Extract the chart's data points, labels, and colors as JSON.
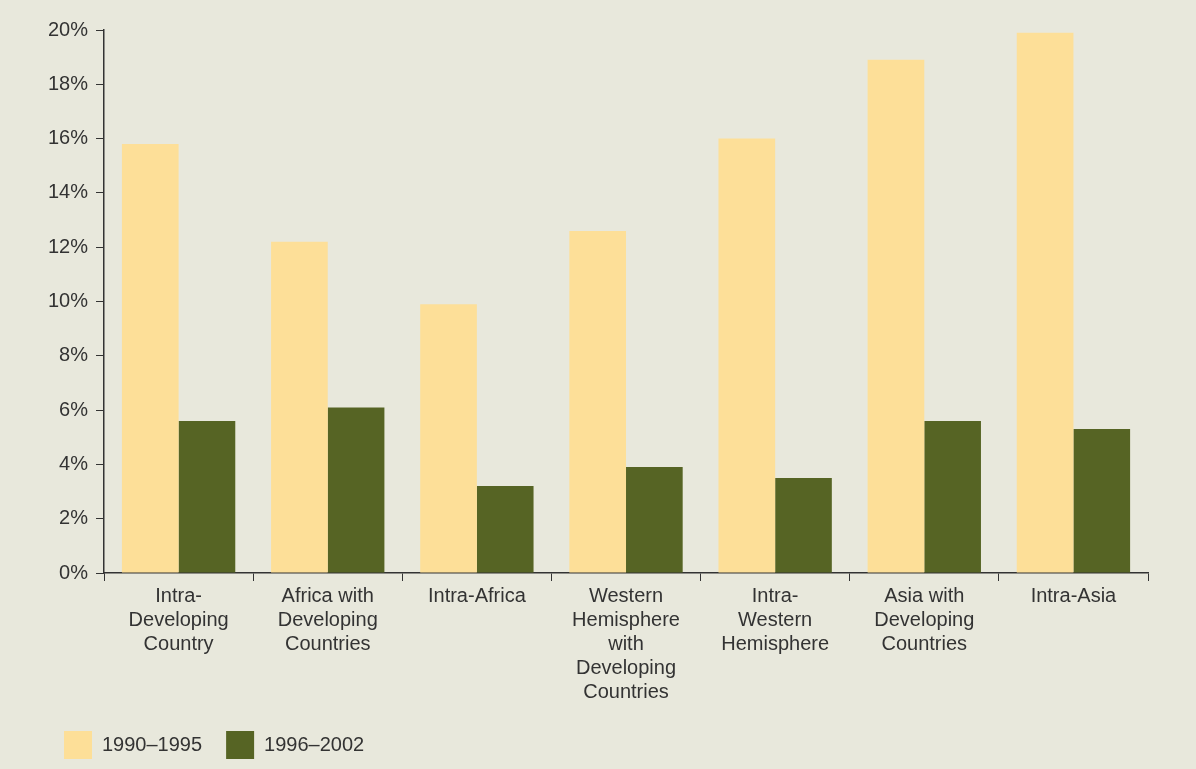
{
  "chart_data": {
    "type": "bar",
    "categories": [
      "Intra-Developing Country",
      "Africa with Developing Countries",
      "Intra-Africa",
      "Western Hemisphere with Developing Countries",
      "Intra-Western Hemisphere",
      "Asia with Developing Countries",
      "Intra-Asia"
    ],
    "series": [
      {
        "name": "1990–1995",
        "color": "#fddf98",
        "values": [
          15.8,
          12.2,
          9.9,
          12.6,
          16.0,
          18.9,
          19.9
        ]
      },
      {
        "name": "1996–2002",
        "color": "#566424",
        "values": [
          5.6,
          6.1,
          3.2,
          3.9,
          3.5,
          5.6,
          5.3
        ]
      }
    ],
    "ylim": [
      0,
      20
    ],
    "yticks": [
      {
        "value": 0,
        "label": "0%"
      },
      {
        "value": 2,
        "label": "2%"
      },
      {
        "value": 4,
        "label": "4%"
      },
      {
        "value": 6,
        "label": "6%"
      },
      {
        "value": 8,
        "label": "8%"
      },
      {
        "value": 10,
        "label": "10%"
      },
      {
        "value": 12,
        "label": "12%"
      },
      {
        "value": 14,
        "label": "14%"
      },
      {
        "value": 16,
        "label": "16%"
      },
      {
        "value": 18,
        "label": "18%"
      },
      {
        "value": 20,
        "label": "20%"
      }
    ],
    "grid": false,
    "legend": "bottom left"
  }
}
